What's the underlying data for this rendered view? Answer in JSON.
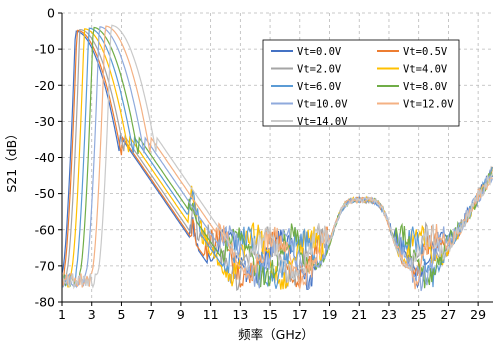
{
  "chart_data": {
    "type": "line",
    "title": "",
    "xlabel": "频率（GHz）",
    "ylabel": "S21（dB）",
    "xlim": [
      1,
      30
    ],
    "ylim": [
      -80,
      0
    ],
    "xticks": [
      1,
      3,
      5,
      7,
      9,
      11,
      13,
      15,
      17,
      19,
      21,
      23,
      25,
      27,
      29
    ],
    "yticks": [
      0,
      -10,
      -20,
      -30,
      -40,
      -50,
      -60,
      -70,
      -80
    ],
    "grid": true,
    "legend_position": "top-right",
    "series": [
      {
        "name": "Vt=0.0V",
        "color": "#4472c4",
        "peak_x": 1.9,
        "peak_y": -5.0
      },
      {
        "name": "Vt=0.5V",
        "color": "#ed7d31",
        "peak_x": 2.0,
        "peak_y": -4.8
      },
      {
        "name": "Vt=2.0V",
        "color": "#a5a5a5",
        "peak_x": 2.2,
        "peak_y": -4.6
      },
      {
        "name": "Vt=4.0V",
        "color": "#ffc000",
        "peak_x": 2.5,
        "peak_y": -4.4
      },
      {
        "name": "Vt=6.0V",
        "color": "#5b9bd5",
        "peak_x": 2.8,
        "peak_y": -4.2
      },
      {
        "name": "Vt=8.0V",
        "color": "#70ad47",
        "peak_x": 3.1,
        "peak_y": -4.0
      },
      {
        "name": "Vt=10.0V",
        "color": "#8faadc",
        "peak_x": 3.5,
        "peak_y": -3.8
      },
      {
        "name": "Vt=12.0V",
        "color": "#f4b183",
        "peak_x": 3.9,
        "peak_y": -3.6
      },
      {
        "name": "Vt=14.0V",
        "color": "#c9c9c9",
        "peak_x": 4.3,
        "peak_y": -3.4
      }
    ]
  }
}
